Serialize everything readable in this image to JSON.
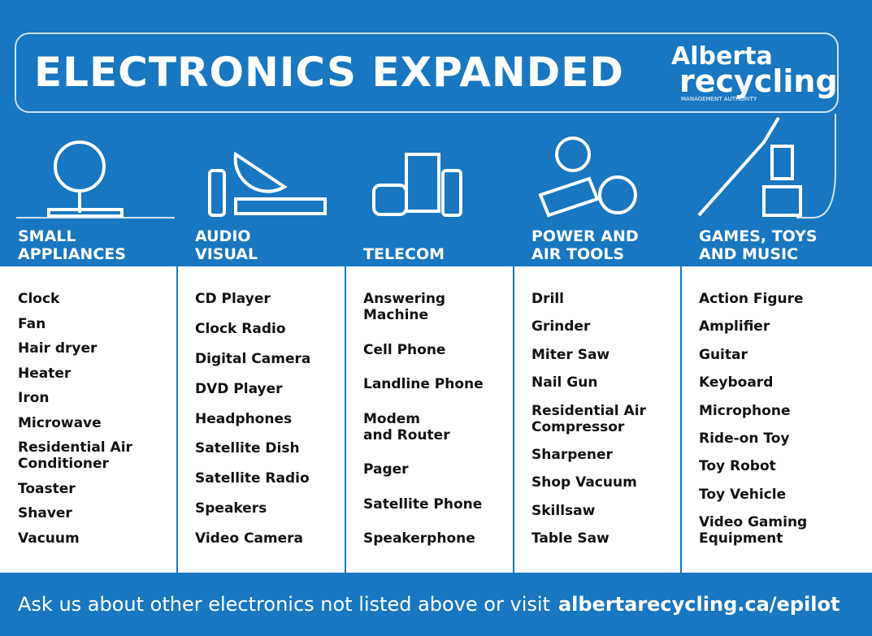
{
  "header": {
    "title": "ELECTRONICS EXPANDED",
    "logo_top": "Alberta",
    "logo_bottom": "recycling",
    "logo_sub": "MANAGEMENT AUTHORITY"
  },
  "columns": [
    {
      "heading": "SMALL\nAPPLIANCES",
      "items": [
        "Clock",
        "Fan",
        "Hair dryer",
        "Heater",
        "Iron",
        "Microwave",
        "Residential Air\nConditioner",
        "Toaster",
        "Shaver",
        "Vacuum"
      ]
    },
    {
      "heading": "AUDIO\nVISUAL",
      "items": [
        "CD Player",
        "Clock Radio",
        "Digital Camera",
        "DVD Player",
        "Headphones",
        "Satellite Dish",
        "Satellite Radio",
        "Speakers",
        "Video Camera"
      ]
    },
    {
      "heading": "TELECOM",
      "items": [
        "Answering\nMachine",
        "Cell Phone",
        "Landline Phone",
        "Modem\nand Router",
        "Pager",
        "Satellite Phone",
        "Speakerphone"
      ]
    },
    {
      "heading": "POWER AND\nAIR TOOLS",
      "items": [
        "Drill",
        "Grinder",
        "Miter Saw",
        "Nail Gun",
        "Residential Air\nCompressor",
        "Sharpener",
        "Shop Vacuum",
        "Skillsaw",
        "Table Saw"
      ]
    },
    {
      "heading": "GAMES, TOYS\nAND MUSIC",
      "items": [
        "Action Figure",
        "Amplifier",
        "Guitar",
        "Keyboard",
        "Microphone",
        "Ride-on Toy",
        "Toy Robot",
        "Toy Vehicle",
        "Video Gaming\nEquipment"
      ]
    }
  ],
  "footer": {
    "text": "Ask us about other electronics not listed above or visit",
    "link": "albertarecycling.ca/epilot"
  }
}
